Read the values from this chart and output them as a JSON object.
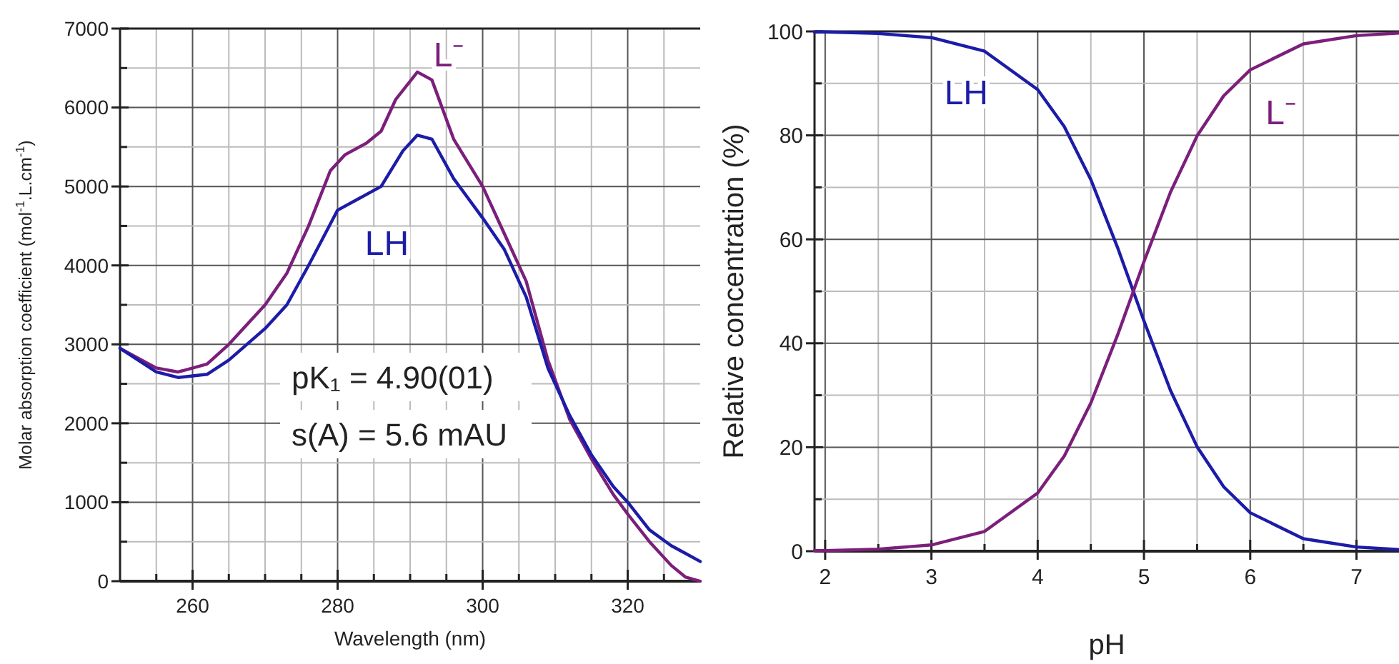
{
  "chart_data": [
    {
      "type": "line",
      "xlabel": "Wavelength (nm)",
      "ylabel": "Molar absorption coefficient (mol$^{-1}$.L.cm$^{-1}$)",
      "xlim": [
        250,
        330
      ],
      "ylim": [
        0,
        7000
      ],
      "xticks": [
        {
          "value": 255,
          "label": null
        },
        {
          "value": 260,
          "label": "260"
        },
        {
          "value": 265,
          "label": null
        },
        {
          "value": 270,
          "label": null
        },
        {
          "value": 275,
          "label": null
        },
        {
          "value": 280,
          "label": "280"
        },
        {
          "value": 285,
          "label": null
        },
        {
          "value": 290,
          "label": null
        },
        {
          "value": 295,
          "label": null
        },
        {
          "value": 300,
          "label": "300"
        },
        {
          "value": 305,
          "label": null
        },
        {
          "value": 310,
          "label": null
        },
        {
          "value": 315,
          "label": null
        },
        {
          "value": 320,
          "label": "320"
        },
        {
          "value": 325,
          "label": null
        }
      ],
      "yticks": [
        0,
        {
          "value": 500,
          "label": null
        },
        1000,
        {
          "value": 1500,
          "label": null
        },
        2000,
        {
          "value": 2500,
          "label": null
        },
        3000,
        {
          "value": 3500,
          "label": null
        },
        4000,
        {
          "value": 4500,
          "label": null
        },
        5000,
        {
          "value": 5500,
          "label": null
        },
        6000,
        {
          "value": 6500,
          "label": null
        },
        7000
      ],
      "grid": true,
      "line_style": "solid",
      "marker": "none",
      "annotations": [
        "pK₁ = 4.90(01)",
        "s(A) = 5.6 mAU"
      ],
      "series": [
        {
          "name": "L⁻",
          "color": "#7b1f7b",
          "x": [
            250,
            255,
            258,
            262,
            265,
            270,
            273,
            276,
            279,
            281,
            284,
            286,
            288,
            291,
            293,
            296,
            300,
            303,
            306,
            309,
            312,
            315,
            318,
            320,
            323,
            326,
            328,
            330
          ],
          "values": [
            2950,
            2700,
            2650,
            2750,
            3000,
            3500,
            3900,
            4500,
            5200,
            5400,
            5550,
            5700,
            6100,
            6450,
            6350,
            5600,
            5000,
            4400,
            3800,
            2800,
            2050,
            1550,
            1100,
            850,
            500,
            200,
            50,
            0
          ]
        },
        {
          "name": "LH",
          "color": "#1c1ca8",
          "x": [
            250,
            255,
            258,
            262,
            265,
            270,
            273,
            276,
            280,
            283,
            286,
            289,
            291,
            293,
            296,
            300,
            303,
            306,
            309,
            312,
            315,
            318,
            320,
            323,
            326,
            328,
            330
          ],
          "values": [
            2950,
            2650,
            2580,
            2620,
            2800,
            3200,
            3500,
            4000,
            4700,
            4850,
            5000,
            5450,
            5650,
            5600,
            5100,
            4600,
            4200,
            3600,
            2700,
            2100,
            1600,
            1200,
            1000,
            650,
            450,
            350,
            250
          ]
        }
      ]
    },
    {
      "type": "line",
      "xlabel": "pH",
      "ylabel": "Relative concentration (%)",
      "xlim": [
        1.9,
        7.4
      ],
      "ylim": [
        0,
        100
      ],
      "xticks": [
        2,
        {
          "value": 2.5,
          "label": null
        },
        3,
        {
          "value": 3.5,
          "label": null
        },
        4,
        {
          "value": 4.5,
          "label": null
        },
        5,
        {
          "value": 5.5,
          "label": null
        },
        6,
        {
          "value": 6.5,
          "label": null
        },
        7
      ],
      "yticks": [
        0,
        {
          "value": 10,
          "label": null
        },
        20,
        {
          "value": 30,
          "label": null
        },
        40,
        {
          "value": 50,
          "label": null
        },
        60,
        {
          "value": 70,
          "label": null
        },
        80,
        {
          "value": 90,
          "label": null
        },
        100
      ],
      "grid": true,
      "line_style": "solid",
      "marker": "none",
      "series": [
        {
          "name": "LH",
          "color": "#1c1ca8",
          "x": [
            1.9,
            2,
            2.5,
            3,
            3.5,
            4,
            4.25,
            4.5,
            4.75,
            4.9,
            5,
            5.25,
            5.5,
            5.75,
            6,
            6.5,
            7,
            7.4
          ],
          "values": [
            99.9,
            99.9,
            99.6,
            98.8,
            96.2,
            88.8,
            81.7,
            71.5,
            58.5,
            50,
            44.3,
            30.9,
            20.1,
            12.4,
            7.4,
            2.4,
            0.8,
            0.3
          ]
        },
        {
          "name": "L⁻",
          "color": "#7b1f7b",
          "x": [
            1.9,
            2,
            2.5,
            3,
            3.5,
            4,
            4.25,
            4.5,
            4.75,
            4.9,
            5,
            5.25,
            5.5,
            5.75,
            6,
            6.5,
            7,
            7.4
          ],
          "values": [
            0.1,
            0.1,
            0.4,
            1.2,
            3.8,
            11.2,
            18.3,
            28.5,
            41.5,
            50,
            55.7,
            69.1,
            79.9,
            87.6,
            92.6,
            97.6,
            99.2,
            99.7
          ]
        }
      ]
    }
  ]
}
